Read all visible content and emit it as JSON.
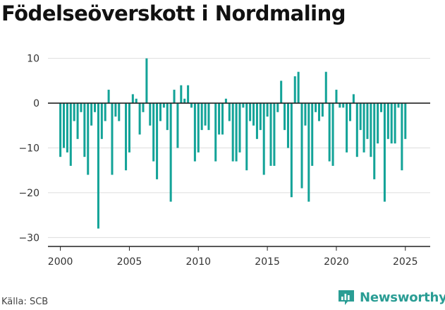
{
  "title": "Födelseöverskott i Nordmaling",
  "source": "Källa: SCB",
  "brand": "Newsworthy",
  "colors": {
    "bar": "#13a398",
    "axis": "#222222",
    "grid": "#dddddd",
    "brand": "#2a9d94"
  },
  "chart_data": {
    "type": "bar",
    "title": "Födelseöverskott i Nordmaling",
    "xlabel": "",
    "ylabel": "",
    "ylim": [
      -32,
      12
    ],
    "xlim": [
      1999.1,
      2026.8
    ],
    "y_ticks": [
      10,
      0,
      -10,
      -20,
      -30
    ],
    "y_tick_labels": [
      "10",
      "0",
      "−10",
      "−20",
      "−30"
    ],
    "x_ticks": [
      2000,
      2005,
      2010,
      2015,
      2020,
      2025
    ],
    "x_tick_labels": [
      "2000",
      "2005",
      "2010",
      "2015",
      "2020",
      "2025"
    ],
    "grid": true,
    "frequency": "quarterly",
    "x": [
      2000.0,
      2000.25,
      2000.5,
      2000.75,
      2001.0,
      2001.25,
      2001.5,
      2001.75,
      2002.0,
      2002.25,
      2002.5,
      2002.75,
      2003.0,
      2003.25,
      2003.5,
      2003.75,
      2004.0,
      2004.25,
      2004.5,
      2004.75,
      2005.0,
      2005.25,
      2005.5,
      2005.75,
      2006.0,
      2006.25,
      2006.5,
      2006.75,
      2007.0,
      2007.25,
      2007.5,
      2007.75,
      2008.0,
      2008.25,
      2008.5,
      2008.75,
      2009.0,
      2009.25,
      2009.5,
      2009.75,
      2010.0,
      2010.25,
      2010.5,
      2010.75,
      2011.0,
      2011.25,
      2011.5,
      2011.75,
      2012.0,
      2012.25,
      2012.5,
      2012.75,
      2013.0,
      2013.25,
      2013.5,
      2013.75,
      2014.0,
      2014.25,
      2014.5,
      2014.75,
      2015.0,
      2015.25,
      2015.5,
      2015.75,
      2016.0,
      2016.25,
      2016.5,
      2016.75,
      2017.0,
      2017.25,
      2017.5,
      2017.75,
      2018.0,
      2018.25,
      2018.5,
      2018.75,
      2019.0,
      2019.25,
      2019.5,
      2019.75,
      2020.0,
      2020.25,
      2020.5,
      2020.75,
      2021.0,
      2021.25,
      2021.5,
      2021.75,
      2022.0,
      2022.25,
      2022.5,
      2022.75,
      2023.0,
      2023.25,
      2023.5,
      2023.75,
      2024.0,
      2024.25,
      2024.5,
      2024.75,
      2025.0,
      2025.25
    ],
    "values": [
      -12,
      -10,
      -11,
      -14,
      -4,
      -8,
      -2,
      -12,
      -16,
      -5,
      -2,
      -28,
      -8,
      -4,
      3,
      -16,
      -3,
      -4,
      0,
      -15,
      -11,
      2,
      1,
      -7,
      -2,
      10,
      -5,
      -13,
      -17,
      -4,
      -1,
      -6,
      -22,
      3,
      -10,
      4,
      1,
      4,
      -1,
      -13,
      -11,
      -6,
      -5,
      -6,
      0,
      -13,
      -7,
      -7,
      1,
      -4,
      -13,
      -13,
      -11,
      -1,
      -15,
      -4,
      -5,
      -8,
      -6,
      -16,
      -3,
      -14,
      -14,
      -2,
      5,
      -6,
      -10,
      -21,
      6,
      7,
      -19,
      -5,
      -22,
      -14,
      -2,
      -4,
      -3,
      7,
      -13,
      -14,
      3,
      -1,
      -1,
      -11,
      -4,
      2,
      -12,
      -6,
      -11,
      -8,
      -12,
      -17,
      -9,
      -2,
      -22,
      -8,
      -9,
      -9,
      -1,
      -15,
      -8,
      0
    ]
  }
}
